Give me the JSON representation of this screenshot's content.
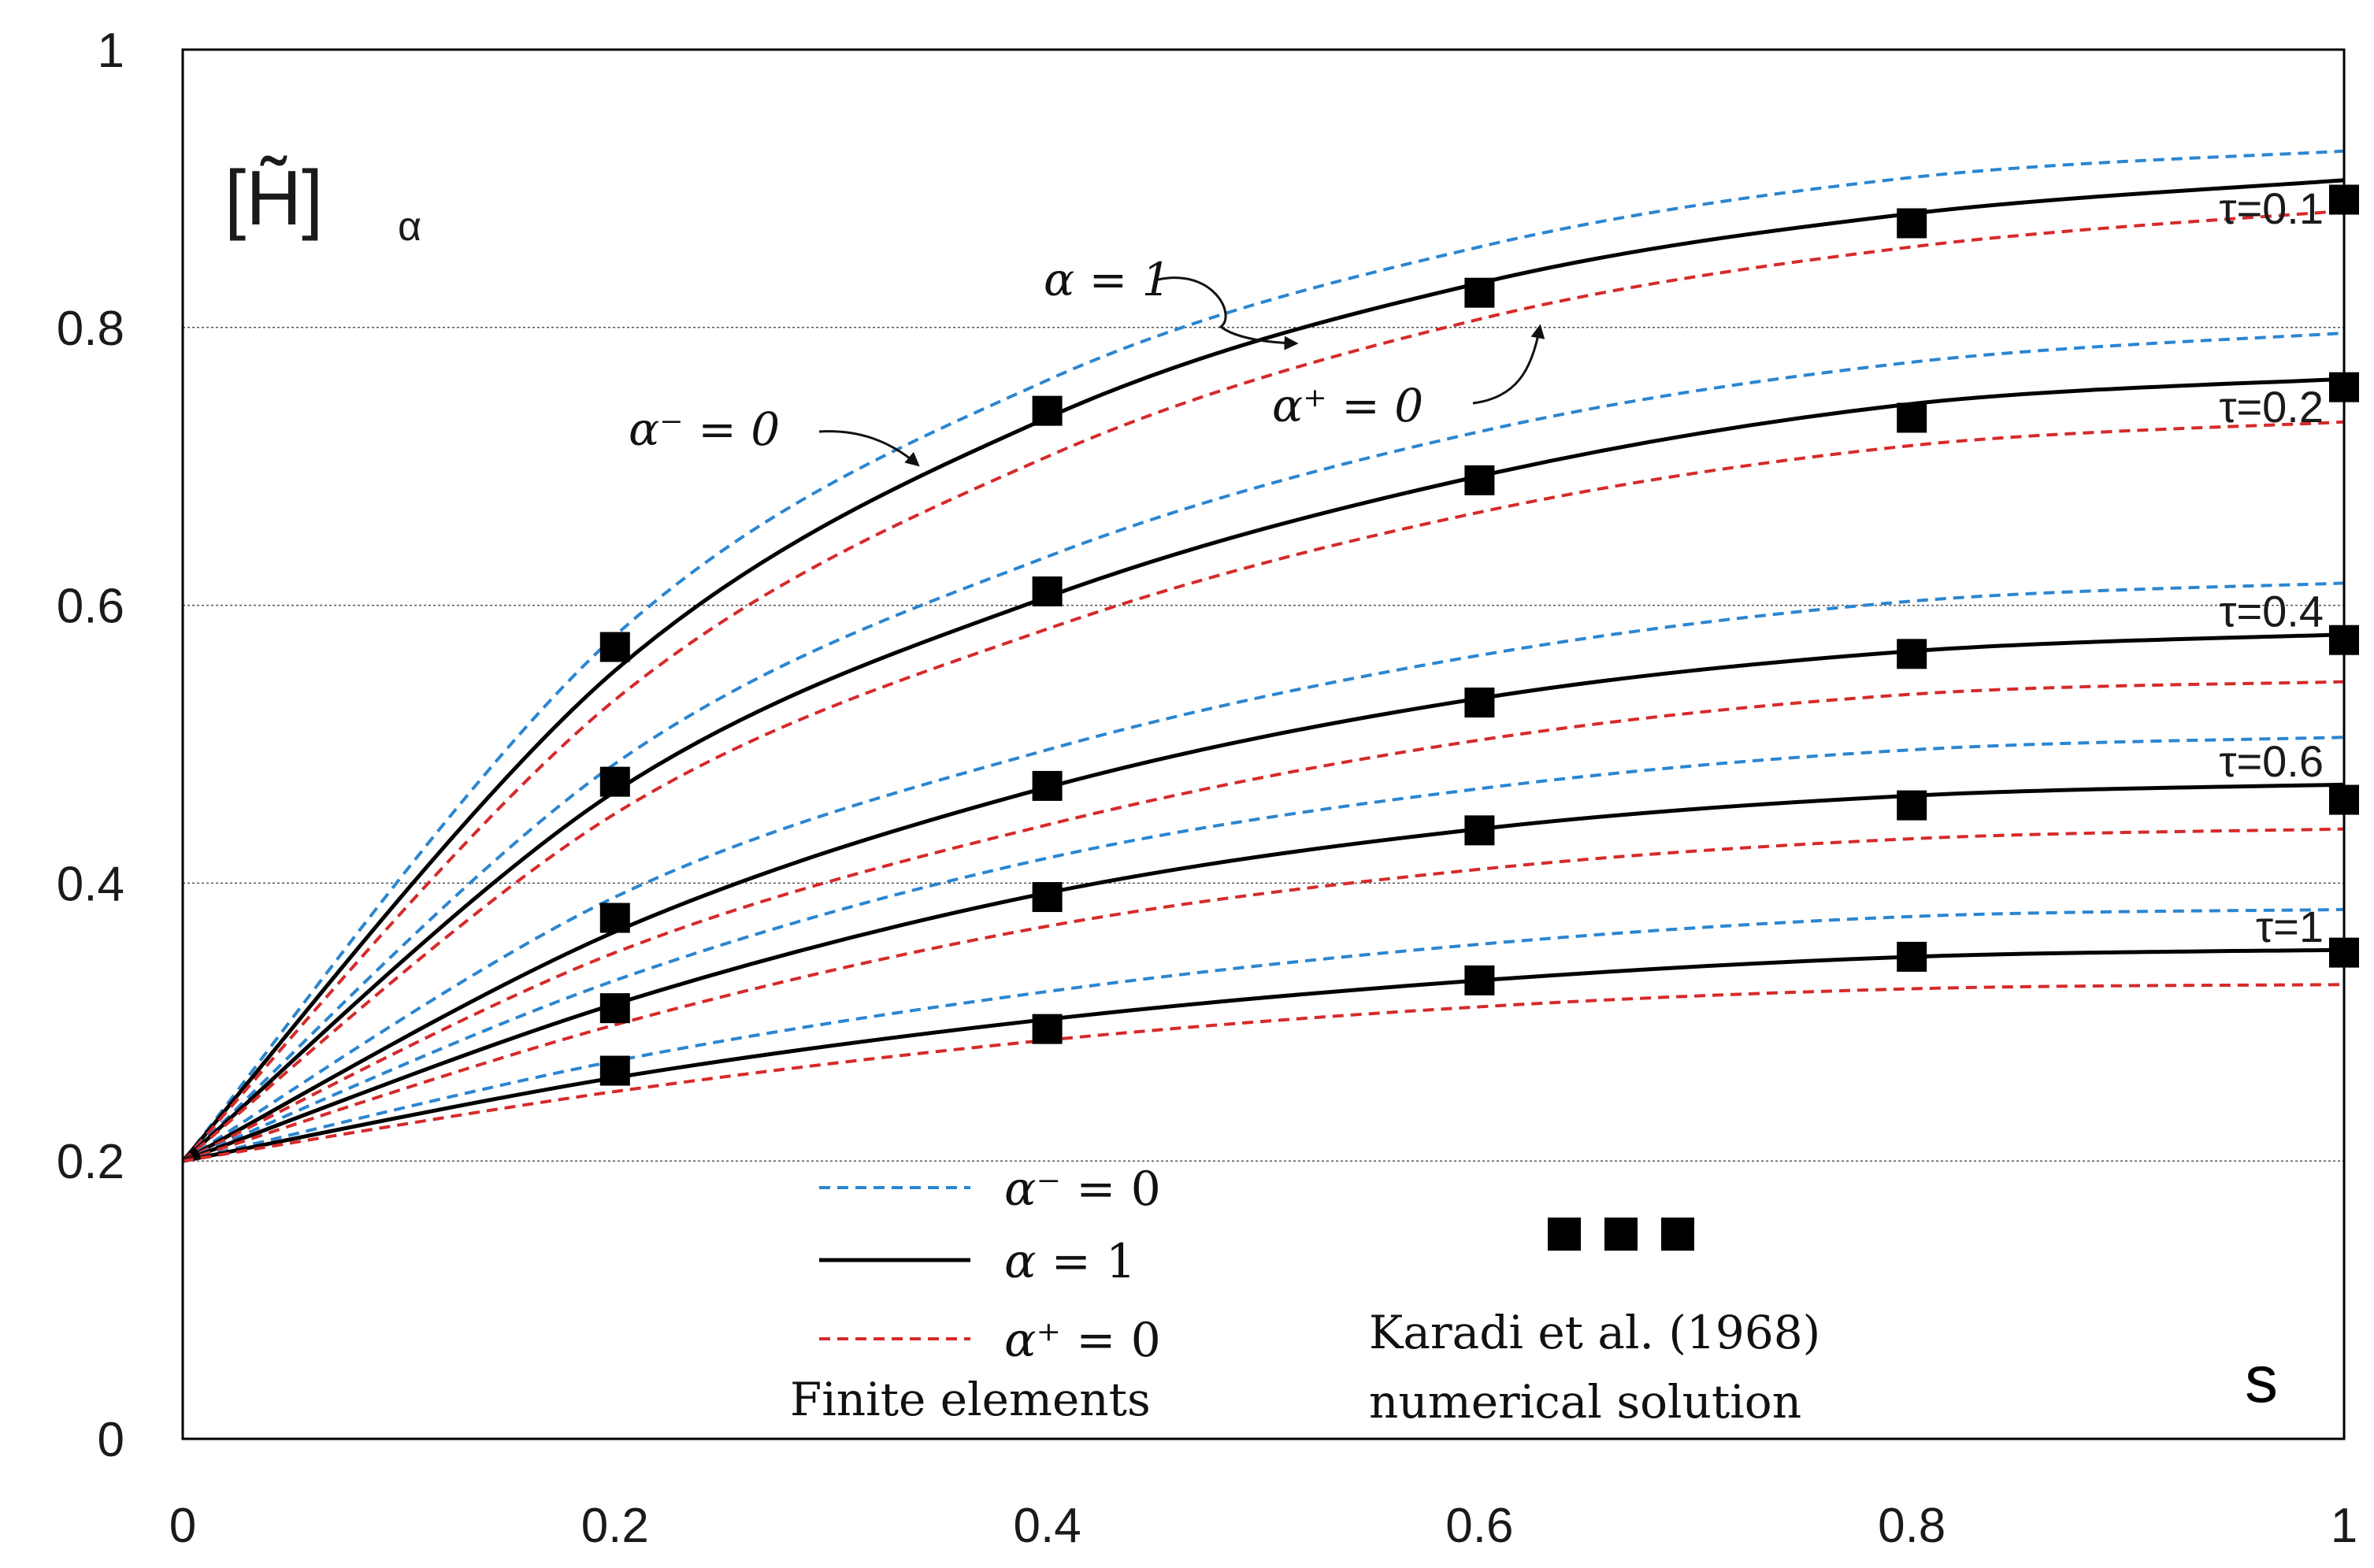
{
  "chart_data": {
    "type": "line",
    "x_range": [
      0,
      1
    ],
    "y_range": [
      0,
      1
    ],
    "x_ticks": [
      "0",
      "0.2",
      "0.4",
      "0.6",
      "0.8",
      "1"
    ],
    "y_ticks": [
      "0",
      "0.2",
      "0.4",
      "0.6",
      "0.8",
      "1"
    ],
    "gridlines_y": [
      0.2,
      0.4,
      0.6,
      0.8
    ],
    "xlabel": "s",
    "ylabel_main": "[H̃]",
    "ylabel_sub": "α",
    "series_styles": [
      {
        "key": "alpha_minus",
        "color": "#2b86d1",
        "dashed": true
      },
      {
        "key": "alpha_one",
        "color": "#000000",
        "dashed": false
      },
      {
        "key": "alpha_plus",
        "color": "#d62a2a",
        "dashed": true
      }
    ],
    "curves": [
      {
        "tau": "τ=0.1",
        "x": [
          0,
          0.2,
          0.4,
          0.6,
          0.8,
          1.0
        ],
        "alpha_minus": [
          0.2,
          0.578,
          0.762,
          0.858,
          0.908,
          0.927
        ],
        "alpha_one": [
          0.2,
          0.553,
          0.735,
          0.832,
          0.882,
          0.906
        ],
        "alpha_plus": [
          0.2,
          0.532,
          0.707,
          0.806,
          0.858,
          0.884
        ],
        "karadi": [
          0.57,
          0.74,
          0.825,
          0.875,
          0.892
        ]
      },
      {
        "tau": "τ=0.2",
        "x": [
          0,
          0.2,
          0.4,
          0.6,
          0.8,
          1.0
        ],
        "alpha_minus": [
          0.2,
          0.486,
          0.635,
          0.725,
          0.775,
          0.796
        ],
        "alpha_one": [
          0.2,
          0.466,
          0.606,
          0.693,
          0.745,
          0.763
        ],
        "alpha_plus": [
          0.2,
          0.45,
          0.583,
          0.667,
          0.715,
          0.732
        ],
        "karadi": [
          0.473,
          0.61,
          0.69,
          0.735,
          0.757
        ]
      },
      {
        "tau": "τ=0.4",
        "x": [
          0,
          0.2,
          0.4,
          0.6,
          0.8,
          1.0
        ],
        "alpha_minus": [
          0.2,
          0.39,
          0.496,
          0.564,
          0.603,
          0.616
        ],
        "alpha_one": [
          0.2,
          0.365,
          0.469,
          0.533,
          0.567,
          0.579
        ],
        "alpha_plus": [
          0.2,
          0.35,
          0.442,
          0.503,
          0.536,
          0.545
        ],
        "karadi": [
          0.375,
          0.47,
          0.53,
          0.565,
          0.575
        ]
      },
      {
        "tau": "τ=0.6",
        "x": [
          0,
          0.2,
          0.4,
          0.6,
          0.8,
          1.0
        ],
        "alpha_minus": [
          0.2,
          0.33,
          0.418,
          0.468,
          0.496,
          0.505
        ],
        "alpha_one": [
          0.2,
          0.313,
          0.393,
          0.439,
          0.463,
          0.471
        ],
        "alpha_plus": [
          0.2,
          0.298,
          0.369,
          0.41,
          0.432,
          0.439
        ],
        "karadi": [
          0.31,
          0.39,
          0.438,
          0.456,
          0.46
        ]
      },
      {
        "tau": "τ=1",
        "x": [
          0,
          0.2,
          0.4,
          0.6,
          0.8,
          1.0
        ],
        "alpha_minus": [
          0.2,
          0.272,
          0.322,
          0.356,
          0.376,
          0.381
        ],
        "alpha_one": [
          0.2,
          0.26,
          0.302,
          0.33,
          0.347,
          0.352
        ],
        "alpha_plus": [
          0.2,
          0.25,
          0.287,
          0.311,
          0.324,
          0.327
        ],
        "karadi": [
          0.265,
          0.295,
          0.33,
          0.347,
          0.35
        ]
      }
    ],
    "annotations": {
      "alpha_one": "α = 1",
      "alpha_minus": "α⁻ = 0",
      "alpha_plus": "α⁺ = 0"
    },
    "legend": {
      "entries": [
        {
          "label_greek": "α⁻",
          "label_rest": " = 0"
        },
        {
          "label_greek": "α",
          "label_rest": " = 1"
        },
        {
          "label_greek": "α⁺",
          "label_rest": " = 0"
        }
      ],
      "title": "Finite elements",
      "marker_label_line1": "Karadi et al. (1968)",
      "marker_label_line2": "numerical solution"
    }
  }
}
